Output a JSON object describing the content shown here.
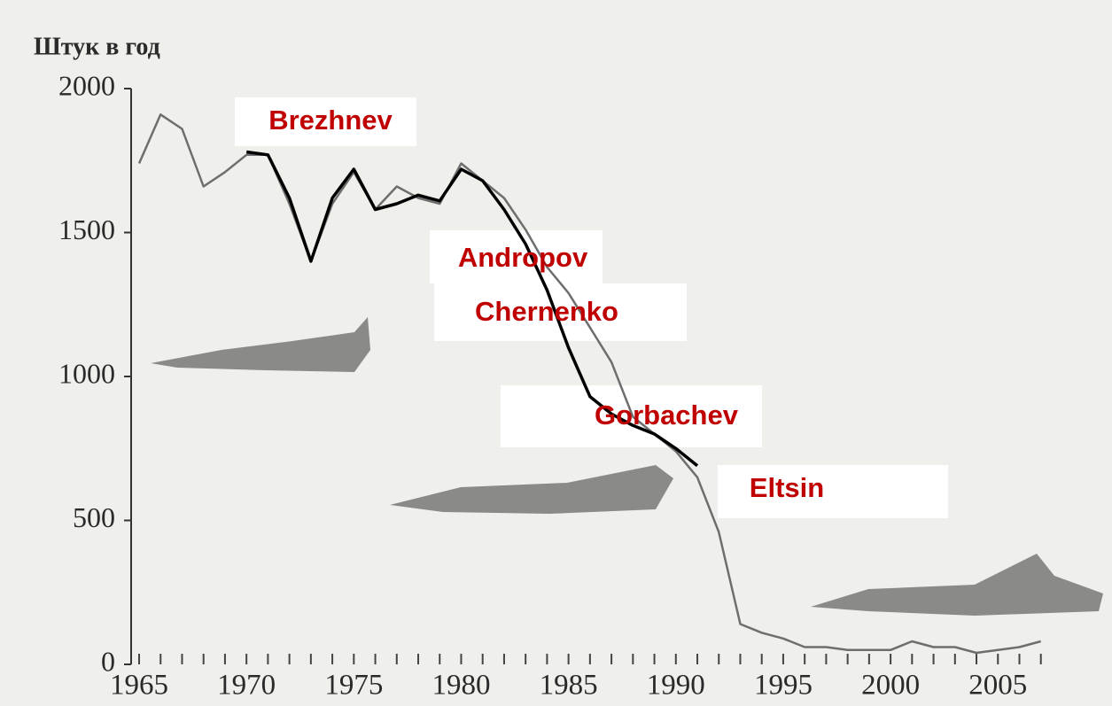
{
  "chart_data": {
    "type": "line",
    "y_label": "Штук в год",
    "x": [
      1965,
      1966,
      1967,
      1968,
      1969,
      1970,
      1971,
      1972,
      1973,
      1974,
      1975,
      1976,
      1977,
      1978,
      1979,
      1980,
      1981,
      1982,
      1983,
      1984,
      1985,
      1986,
      1987,
      1988,
      1989,
      1990,
      1991,
      1992,
      1993,
      1994,
      1995,
      1996,
      1997,
      1998,
      1999,
      2000,
      2001,
      2002,
      2003,
      2004,
      2005,
      2006,
      2007
    ],
    "series": [
      {
        "color": "#6e6e6e",
        "values": [
          1740,
          1910,
          1860,
          1660,
          1710,
          1770,
          1770,
          1600,
          1400,
          1600,
          1710,
          1580,
          1660,
          1620,
          1600,
          1740,
          1680,
          1620,
          1510,
          1380,
          1290,
          1170,
          1050,
          860,
          800,
          740,
          650,
          460,
          140,
          110,
          90,
          60,
          60,
          50,
          50,
          50,
          80,
          60,
          60,
          40,
          50,
          60,
          80
        ]
      },
      {
        "color": "#000000",
        "values": [
          null,
          null,
          null,
          null,
          null,
          1780,
          1770,
          1620,
          1400,
          1620,
          1720,
          1580,
          1600,
          1630,
          1610,
          1720,
          1680,
          1580,
          1460,
          1300,
          1100,
          930,
          870,
          830,
          800,
          750,
          690,
          null,
          null,
          null,
          null,
          null,
          null,
          null,
          null,
          null,
          null,
          null,
          null,
          null,
          null,
          null,
          null
        ]
      }
    ],
    "xlim": [
      1965,
      2008
    ],
    "xticks": [
      1965,
      1970,
      1975,
      1980,
      1985,
      1990,
      1995,
      2000,
      2005
    ],
    "ylim": [
      0,
      2000
    ],
    "yticks": [
      0,
      500,
      1000,
      1500,
      2000
    ],
    "annotations": [
      "Brezhnev",
      "Andropov",
      "Chernenko",
      "Gorbachev",
      "Eltsin"
    ],
    "annotation_color": "#c00000"
  }
}
